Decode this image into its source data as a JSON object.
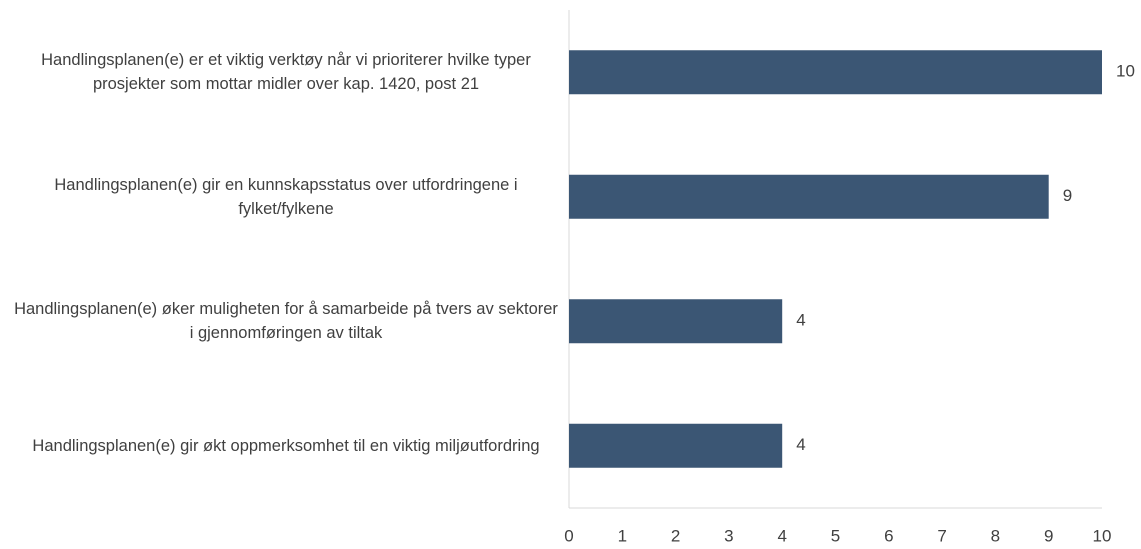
{
  "chart_data": {
    "type": "hbar",
    "categories": [
      "Handlingsplanen(e) er et viktig verktøy når vi prioriterer hvilke typer prosjekter som mottar midler over kap. 1420, post 21",
      "Handlingsplanen(e) gir en kunnskapsstatus over utfordringene i fylket/fylkene",
      "Handlingsplanen(e) øker muligheten for å samarbeide på tvers av sektorer i gjennomføringen av tiltak",
      "Handlingsplanen(e) gir økt oppmerksomhet til en viktig miljøutfordring"
    ],
    "values": [
      10,
      9,
      4,
      4
    ],
    "color": "#3b5674",
    "xlim": [
      0,
      10
    ],
    "xticks": [
      0,
      1,
      2,
      3,
      4,
      5,
      6,
      7,
      8,
      9,
      10
    ],
    "grid": false
  }
}
